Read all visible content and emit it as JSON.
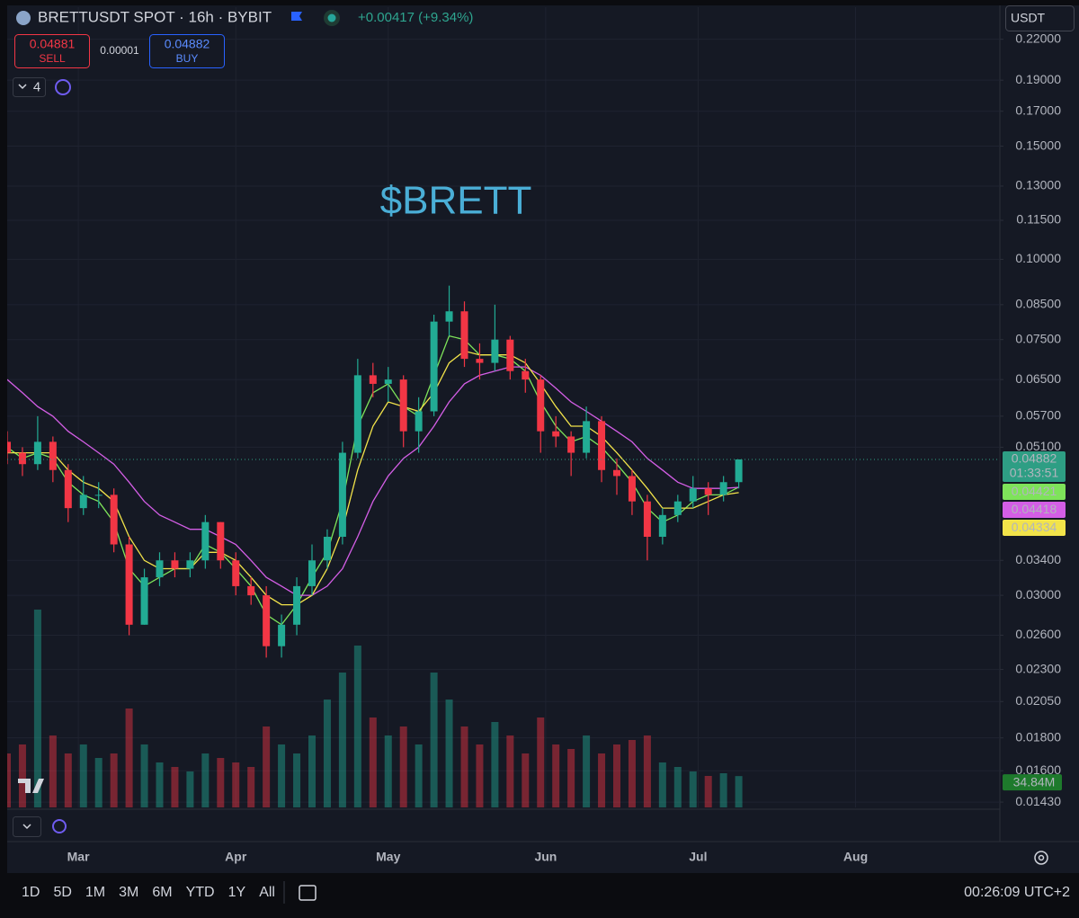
{
  "header": {
    "symbol": "BRETTUSDT SPOT · 16h · BYBIT",
    "change": "+0.00417 (+9.34%)",
    "sell_price": "0.04881",
    "sell_label": "SELL",
    "spread": "0.00001",
    "buy_price": "0.04882",
    "buy_label": "BUY",
    "indicator_count": "4",
    "currency": "USDT"
  },
  "chart_data": {
    "type": "candlestick",
    "annotation": "$BRETT",
    "x": [
      -14,
      -11,
      -8,
      -5,
      -2,
      1,
      4,
      7,
      10,
      13,
      16,
      19,
      22,
      25,
      28,
      31,
      34,
      37,
      40,
      43,
      46,
      49,
      52,
      55,
      58,
      61,
      64,
      67,
      70,
      73,
      76,
      79,
      82,
      85,
      88,
      91,
      94,
      97,
      100,
      103,
      106,
      109,
      112,
      115,
      118,
      121,
      124,
      127,
      130
    ],
    "open": [
      0.052,
      0.05,
      0.048,
      0.052,
      0.047,
      0.041,
      0.043,
      0.043,
      0.036,
      0.027,
      0.032,
      0.034,
      0.033,
      0.034,
      0.039,
      0.034,
      0.031,
      0.03,
      0.025,
      0.027,
      0.031,
      0.034,
      0.037,
      0.05,
      0.066,
      0.064,
      0.065,
      0.054,
      0.058,
      0.08,
      0.083,
      0.07,
      0.069,
      0.075,
      0.067,
      0.065,
      0.054,
      0.053,
      0.05,
      0.056,
      0.047,
      0.046,
      0.042,
      0.037,
      0.04,
      0.042,
      0.044,
      0.043,
      0.045
    ],
    "high": [
      0.054,
      0.051,
      0.057,
      0.053,
      0.048,
      0.046,
      0.045,
      0.044,
      0.037,
      0.033,
      0.035,
      0.035,
      0.035,
      0.04,
      0.039,
      0.035,
      0.032,
      0.031,
      0.028,
      0.032,
      0.036,
      0.038,
      0.052,
      0.07,
      0.069,
      0.068,
      0.066,
      0.061,
      0.082,
      0.091,
      0.086,
      0.074,
      0.085,
      0.076,
      0.07,
      0.066,
      0.057,
      0.054,
      0.059,
      0.057,
      0.049,
      0.047,
      0.043,
      0.041,
      0.043,
      0.046,
      0.045,
      0.046,
      0.04882
    ],
    "low": [
      0.048,
      0.046,
      0.047,
      0.045,
      0.039,
      0.04,
      0.041,
      0.035,
      0.026,
      0.027,
      0.031,
      0.032,
      0.032,
      0.033,
      0.033,
      0.03,
      0.029,
      0.024,
      0.024,
      0.026,
      0.03,
      0.033,
      0.036,
      0.049,
      0.061,
      0.06,
      0.051,
      0.05,
      0.057,
      0.076,
      0.068,
      0.065,
      0.067,
      0.065,
      0.062,
      0.05,
      0.051,
      0.046,
      0.049,
      0.045,
      0.043,
      0.04,
      0.034,
      0.036,
      0.039,
      0.041,
      0.04,
      0.042,
      0.044
    ],
    "close": [
      0.05,
      0.048,
      0.052,
      0.047,
      0.041,
      0.043,
      0.043,
      0.036,
      0.027,
      0.032,
      0.034,
      0.033,
      0.034,
      0.039,
      0.034,
      0.031,
      0.03,
      0.025,
      0.027,
      0.031,
      0.034,
      0.037,
      0.05,
      0.066,
      0.064,
      0.065,
      0.054,
      0.058,
      0.08,
      0.083,
      0.07,
      0.069,
      0.075,
      0.067,
      0.065,
      0.054,
      0.053,
      0.05,
      0.056,
      0.047,
      0.046,
      0.042,
      0.037,
      0.04,
      0.042,
      0.044,
      0.043,
      0.045,
      0.04882
    ],
    "volume": [
      60,
      70,
      220,
      80,
      60,
      70,
      55,
      60,
      110,
      70,
      50,
      45,
      40,
      60,
      55,
      50,
      45,
      90,
      70,
      60,
      80,
      120,
      150,
      180,
      100,
      80,
      90,
      70,
      150,
      120,
      90,
      70,
      95,
      80,
      60,
      100,
      70,
      65,
      80,
      60,
      70,
      75,
      80,
      50,
      45,
      40,
      35,
      38,
      34.84
    ],
    "volume_label": "34.84M",
    "volume_ylim": [
      0,
      300
    ],
    "up_color": "#22ab94",
    "down_color": "#f23645",
    "price_countdown": "01:33:51",
    "series": [
      {
        "color": "#7ee35a",
        "values": [
          0.051,
          0.049,
          0.05,
          0.049,
          0.045,
          0.043,
          0.042,
          0.039,
          0.033,
          0.031,
          0.032,
          0.033,
          0.033,
          0.036,
          0.035,
          0.033,
          0.031,
          0.028,
          0.027,
          0.029,
          0.032,
          0.035,
          0.042,
          0.055,
          0.062,
          0.064,
          0.059,
          0.057,
          0.066,
          0.076,
          0.075,
          0.071,
          0.071,
          0.07,
          0.067,
          0.06,
          0.055,
          0.052,
          0.053,
          0.051,
          0.048,
          0.045,
          0.041,
          0.039,
          0.04,
          0.042,
          0.043,
          0.043,
          0.04421
        ]
      },
      {
        "color": "#d45ee6",
        "values": [
          0.065,
          0.062,
          0.059,
          0.057,
          0.054,
          0.052,
          0.05,
          0.048,
          0.045,
          0.042,
          0.04,
          0.039,
          0.038,
          0.038,
          0.037,
          0.036,
          0.034,
          0.032,
          0.031,
          0.03,
          0.03,
          0.031,
          0.033,
          0.037,
          0.042,
          0.046,
          0.049,
          0.051,
          0.055,
          0.06,
          0.064,
          0.066,
          0.067,
          0.068,
          0.068,
          0.066,
          0.063,
          0.06,
          0.058,
          0.056,
          0.054,
          0.052,
          0.049,
          0.047,
          0.045,
          0.044,
          0.044,
          0.044,
          0.04418
        ]
      },
      {
        "color": "#f2e34a",
        "values": [
          0.05,
          0.05,
          0.05,
          0.05,
          0.047,
          0.045,
          0.044,
          0.042,
          0.037,
          0.034,
          0.033,
          0.033,
          0.033,
          0.035,
          0.035,
          0.034,
          0.032,
          0.03,
          0.029,
          0.029,
          0.03,
          0.033,
          0.038,
          0.047,
          0.055,
          0.06,
          0.059,
          0.058,
          0.062,
          0.069,
          0.072,
          0.071,
          0.071,
          0.071,
          0.069,
          0.064,
          0.059,
          0.055,
          0.055,
          0.053,
          0.05,
          0.047,
          0.044,
          0.041,
          0.041,
          0.041,
          0.042,
          0.043,
          0.04334
        ]
      }
    ],
    "log_scale": true,
    "grid": true,
    "ylim": [
      0.01403,
      0.2468
    ],
    "yticks": [
      {
        "value": 0.22,
        "label": "0.22000"
      },
      {
        "value": 0.19,
        "label": "0.19000"
      },
      {
        "value": 0.17,
        "label": "0.17000"
      },
      {
        "value": 0.15,
        "label": "0.15000"
      },
      {
        "value": 0.13,
        "label": "0.13000"
      },
      {
        "value": 0.115,
        "label": "0.11500"
      },
      {
        "value": 0.1,
        "label": "0.10000"
      },
      {
        "value": 0.085,
        "label": "0.08500"
      },
      {
        "value": 0.075,
        "label": "0.07500"
      },
      {
        "value": 0.065,
        "label": "0.06500"
      },
      {
        "value": 0.057,
        "label": "0.05700"
      },
      {
        "value": 0.051,
        "label": "0.05100"
      },
      {
        "value": 0.034,
        "label": "0.03400"
      },
      {
        "value": 0.03,
        "label": "0.03000"
      },
      {
        "value": 0.026,
        "label": "0.02600"
      },
      {
        "value": 0.023,
        "label": "0.02300"
      },
      {
        "value": 0.0205,
        "label": "0.02050"
      },
      {
        "value": 0.018,
        "label": "0.01800"
      },
      {
        "value": 0.016,
        "label": "0.01600"
      },
      {
        "value": 0.0143,
        "label": "0.01430"
      }
    ],
    "xlim": [
      -14,
      181.4
    ],
    "xticks": [
      {
        "value": 0,
        "label": "Mar"
      },
      {
        "value": 31,
        "label": "Apr"
      },
      {
        "value": 61,
        "label": "May"
      },
      {
        "value": 92,
        "label": "Jun"
      },
      {
        "value": 122,
        "label": "Jul"
      },
      {
        "value": 153,
        "label": "Aug"
      }
    ]
  },
  "toolbar": {
    "ranges": [
      "1D",
      "5D",
      "1M",
      "3M",
      "6M",
      "YTD",
      "1Y",
      "All"
    ],
    "clock": "00:26:09 UTC+2"
  }
}
